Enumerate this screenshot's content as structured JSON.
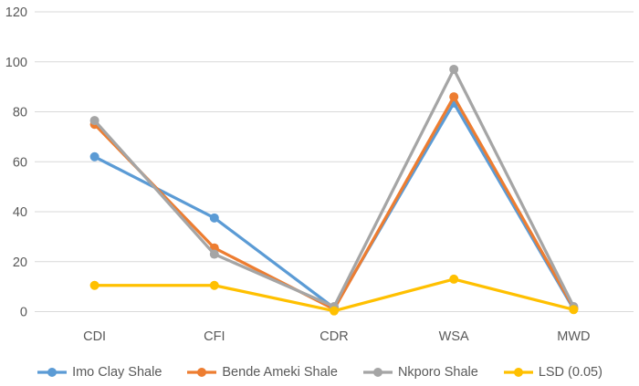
{
  "chart_data": {
    "type": "line",
    "title": "",
    "xlabel": "",
    "ylabel": "",
    "categories": [
      "CDI",
      "CFI",
      "CDR",
      "WSA",
      "MWD"
    ],
    "series": [
      {
        "name": "Imo Clay Shale",
        "color": "#5B9BD5",
        "values": [
          62,
          37.5,
          1.5,
          83.5,
          1
        ]
      },
      {
        "name": "Bende Ameki Shale",
        "color": "#ED7D31",
        "values": [
          75,
          25.5,
          1,
          86,
          1.5
        ]
      },
      {
        "name": "Nkporo Shale",
        "color": "#A5A5A5",
        "values": [
          76.5,
          23,
          2,
          97,
          2
        ]
      },
      {
        "name": "LSD (0.05)",
        "color": "#FFC000",
        "values": [
          10.5,
          10.5,
          0.3,
          13,
          0.8
        ]
      }
    ],
    "ylim": [
      0,
      120
    ],
    "yticks": [
      0,
      20,
      40,
      60,
      80,
      100,
      120
    ],
    "grid": true,
    "legend_position": "bottom",
    "marker": "circle"
  },
  "colors": {
    "gridline": "#D9D9D9",
    "axis_text": "#595959",
    "background": "#FFFFFF"
  }
}
